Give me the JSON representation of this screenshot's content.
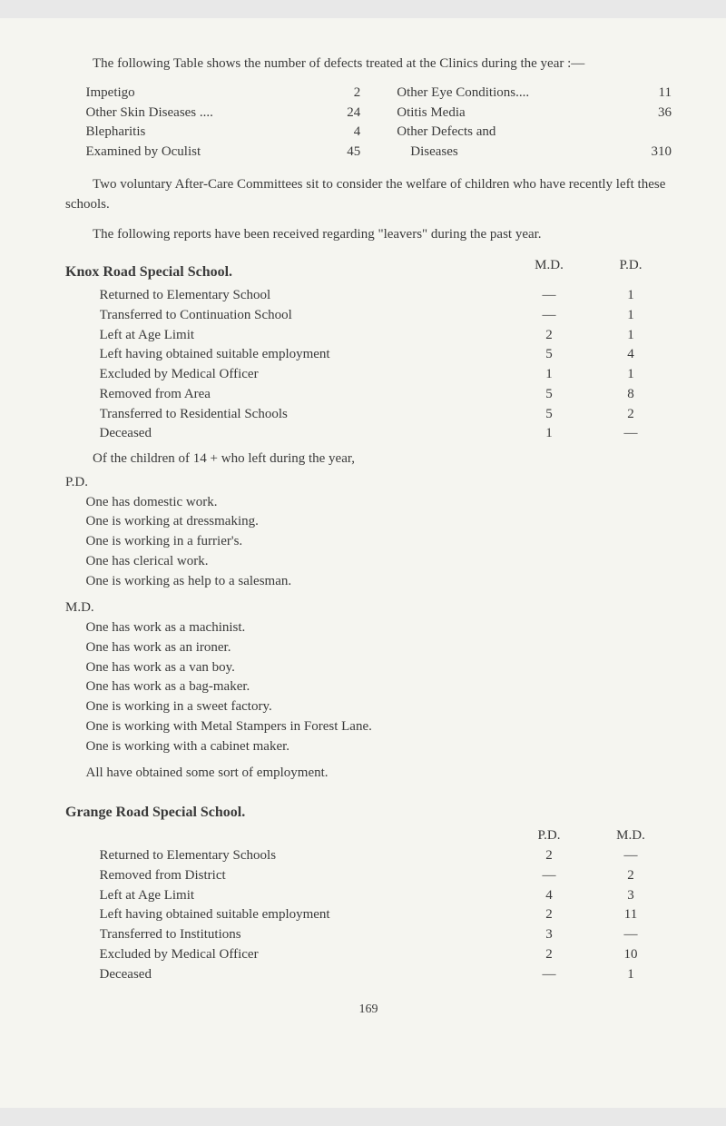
{
  "intro1": "The following Table shows the number of defects treated at the Clinics during the year :—",
  "defects_left": [
    {
      "label": "Impetigo  ",
      "value": "2"
    },
    {
      "label": "Other Skin Diseases ....",
      "value": "24"
    },
    {
      "label": "Blepharitis  ",
      "value": "4"
    },
    {
      "label": "Examined by Oculist",
      "value": "45"
    }
  ],
  "defects_right": [
    {
      "label": "Other Eye Conditions....",
      "value": "11"
    },
    {
      "label": "Otitis Media  ",
      "value": "36"
    },
    {
      "label": "Other Defects and",
      "value": ""
    },
    {
      "label": "    Diseases  ",
      "value": "310"
    }
  ],
  "para2": "Two voluntary After-Care Committees sit to consider the welfare of children who have recently left these schools.",
  "para3": "The following reports have been received regarding \"leavers\" during the past year.",
  "knox": {
    "title": "Knox Road Special School.",
    "col1": "M.D.",
    "col2": "P.D.",
    "rows": [
      {
        "label": "Returned to Elementary School  ",
        "md": "—",
        "pd": "1"
      },
      {
        "label": "Transferred to Continuation School  ",
        "md": "—",
        "pd": "1"
      },
      {
        "label": "Left at Age Limit  ",
        "md": "2",
        "pd": "1"
      },
      {
        "label": "Left having obtained suitable employment",
        "md": "5",
        "pd": "4"
      },
      {
        "label": "Excluded by Medical Officer  ",
        "md": "1",
        "pd": "1"
      },
      {
        "label": "Removed from Area  ",
        "md": "5",
        "pd": "8"
      },
      {
        "label": "Transferred to Residential Schools  ",
        "md": "5",
        "pd": "2"
      },
      {
        "label": "Deceased  ",
        "md": "1",
        "pd": "—"
      }
    ],
    "subpara": "Of the children of 14 + who left during the year,",
    "pd_label": "P.D.",
    "pd_items": [
      "One has domestic work.",
      "One is working at dressmaking.",
      "One is working in a furrier's.",
      "One has clerical work.",
      "One is working as help to a salesman."
    ],
    "md_label": "M.D.",
    "md_items": [
      "One has work as a machinist.",
      "One has work as an ironer.",
      "One has work as a van boy.",
      "One has work as a bag-maker.",
      "One is working in a sweet factory.",
      "One is working with Metal Stampers in Forest Lane.",
      "One is working with a cabinet maker."
    ],
    "closing": "All have obtained some sort of employment."
  },
  "grange": {
    "title": "Grange Road Special School.",
    "col1": "P.D.",
    "col2": "M.D.",
    "rows": [
      {
        "label": "Returned to Elementary Schools",
        "pd": "2",
        "md": "—"
      },
      {
        "label": "Removed from District",
        "pd": "—",
        "md": "2"
      },
      {
        "label": "Left at Age Limit",
        "pd": "4",
        "md": "3"
      },
      {
        "label": "Left having obtained suitable employment",
        "pd": "2",
        "md": "11"
      },
      {
        "label": "Transferred to Institutions",
        "pd": "3",
        "md": "—"
      },
      {
        "label": "Excluded by Medical Officer",
        "pd": "2",
        "md": "10"
      },
      {
        "label": "Deceased",
        "pd": "—",
        "md": "1"
      }
    ]
  },
  "page_number": "169"
}
